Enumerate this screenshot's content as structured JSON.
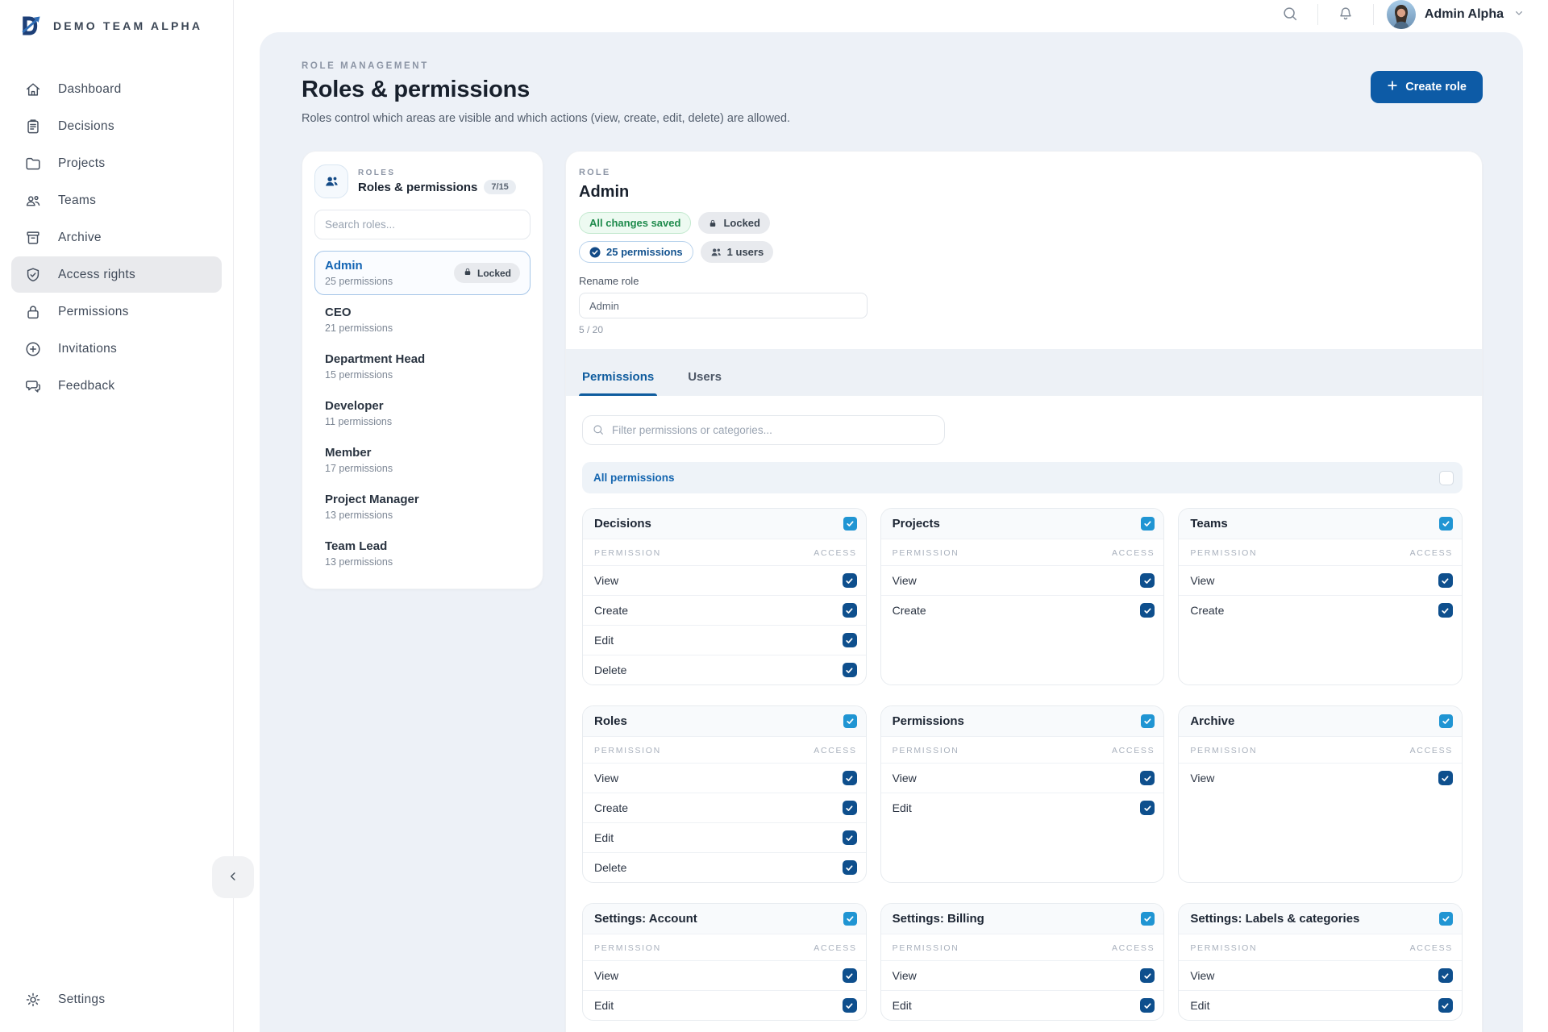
{
  "brand": {
    "name": "DEMO TEAM ALPHA"
  },
  "sidebar": {
    "items": [
      {
        "label": "Dashboard",
        "icon": "home"
      },
      {
        "label": "Decisions",
        "icon": "clipboard"
      },
      {
        "label": "Projects",
        "icon": "folder"
      },
      {
        "label": "Teams",
        "icon": "users"
      },
      {
        "label": "Archive",
        "icon": "archive"
      },
      {
        "label": "Access rights",
        "icon": "shield-check",
        "active": true
      },
      {
        "label": "Permissions",
        "icon": "lock"
      },
      {
        "label": "Invitations",
        "icon": "plus-circle"
      },
      {
        "label": "Feedback",
        "icon": "chat"
      }
    ],
    "bottom_item": {
      "label": "Settings",
      "icon": "gear"
    }
  },
  "topbar": {
    "user_name": "Admin Alpha"
  },
  "page": {
    "eyebrow": "ROLE MANAGEMENT",
    "title": "Roles & permissions",
    "description": "Roles control which areas are visible and which actions (view, create, edit, delete) are allowed.",
    "create_button": "Create role"
  },
  "roles_panel": {
    "eyebrow": "ROLES",
    "title": "Roles & permissions",
    "count_badge": "7/15",
    "search_placeholder": "Search roles...",
    "locked_label": "Locked",
    "roles": [
      {
        "name": "Admin",
        "meta": "25 permissions",
        "locked": true,
        "selected": true
      },
      {
        "name": "CEO",
        "meta": "21 permissions"
      },
      {
        "name": "Department Head",
        "meta": "15 permissions"
      },
      {
        "name": "Developer",
        "meta": "11 permissions"
      },
      {
        "name": "Member",
        "meta": "17 permissions"
      },
      {
        "name": "Project Manager",
        "meta": "13 permissions"
      },
      {
        "name": "Team Lead",
        "meta": "13 permissions"
      }
    ]
  },
  "role_detail": {
    "eyebrow": "ROLE",
    "name": "Admin",
    "badges": {
      "saved": "All changes saved",
      "locked": "Locked",
      "permissions": "25 permissions",
      "users": "1 users"
    },
    "rename": {
      "label": "Rename role",
      "value": "Admin",
      "counter": "5 / 20"
    },
    "tabs": [
      {
        "label": "Permissions",
        "active": true
      },
      {
        "label": "Users",
        "active": false
      }
    ],
    "filter_placeholder": "Filter permissions or categories...",
    "all_permissions": {
      "label": "All permissions",
      "checked": false
    },
    "table_headers": {
      "permission": "PERMISSION",
      "access": "ACCESS"
    },
    "categories": [
      {
        "name": "Decisions",
        "checked": true,
        "rows": [
          {
            "label": "View",
            "checked": true
          },
          {
            "label": "Create",
            "checked": true
          },
          {
            "label": "Edit",
            "checked": true
          },
          {
            "label": "Delete",
            "checked": true
          }
        ]
      },
      {
        "name": "Projects",
        "checked": true,
        "rows": [
          {
            "label": "View",
            "checked": true
          },
          {
            "label": "Create",
            "checked": true
          }
        ]
      },
      {
        "name": "Teams",
        "checked": true,
        "rows": [
          {
            "label": "View",
            "checked": true
          },
          {
            "label": "Create",
            "checked": true
          }
        ]
      },
      {
        "name": "Roles",
        "checked": true,
        "rows": [
          {
            "label": "View",
            "checked": true
          },
          {
            "label": "Create",
            "checked": true
          },
          {
            "label": "Edit",
            "checked": true
          },
          {
            "label": "Delete",
            "checked": true
          }
        ]
      },
      {
        "name": "Permissions",
        "checked": true,
        "rows": [
          {
            "label": "View",
            "checked": true
          },
          {
            "label": "Edit",
            "checked": true
          }
        ]
      },
      {
        "name": "Archive",
        "checked": true,
        "rows": [
          {
            "label": "View",
            "checked": true
          }
        ]
      },
      {
        "name": "Settings: Account",
        "checked": true,
        "rows": [
          {
            "label": "View",
            "checked": true
          },
          {
            "label": "Edit",
            "checked": true
          }
        ]
      },
      {
        "name": "Settings: Billing",
        "checked": true,
        "rows": [
          {
            "label": "View",
            "checked": true
          },
          {
            "label": "Edit",
            "checked": true
          }
        ]
      },
      {
        "name": "Settings: Labels & categories",
        "checked": true,
        "rows": [
          {
            "label": "View",
            "checked": true
          },
          {
            "label": "Edit",
            "checked": true
          }
        ]
      }
    ]
  },
  "colors": {
    "accent_blue": "#0d5ba6",
    "checkbox_navy": "#0e4f8d",
    "checkbox_light_blue": "#2095d3",
    "success_green": "#1d8a4b",
    "selected_role_blue": "#1465b4",
    "panel_background": "#edf1f7"
  }
}
